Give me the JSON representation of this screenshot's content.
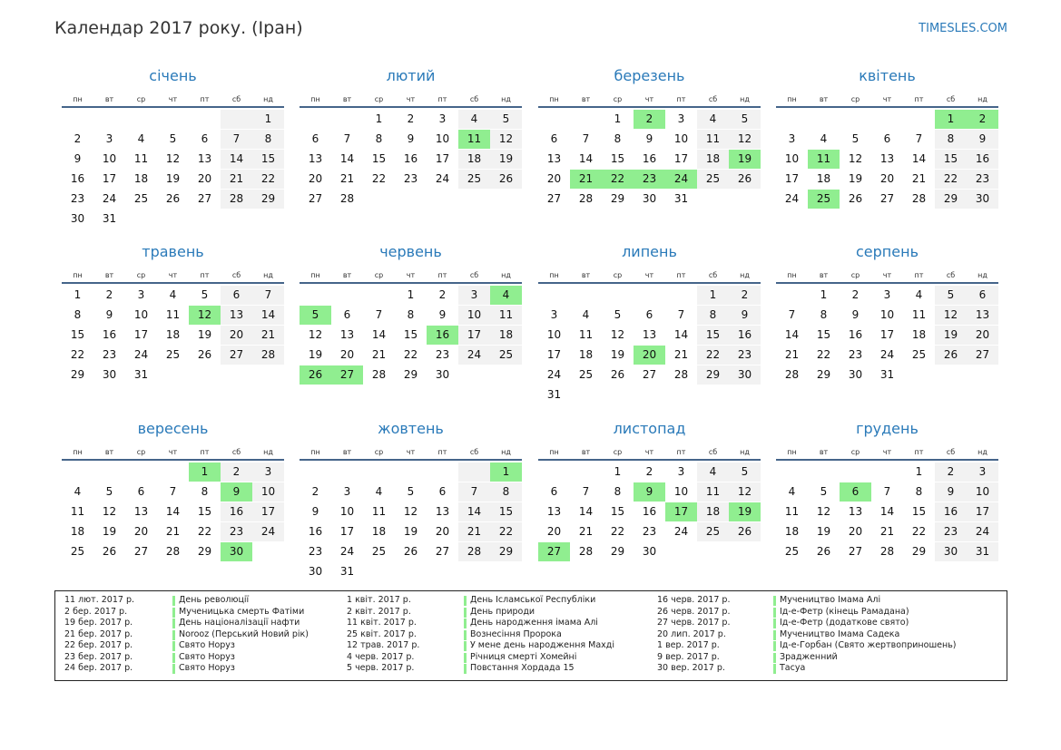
{
  "header": {
    "title": "Календар 2017 року. (Іран)",
    "site": "TIMESLES.COM"
  },
  "weekdays": [
    "пн",
    "вт",
    "ср",
    "чт",
    "пт",
    "сб",
    "нд"
  ],
  "months": [
    {
      "name": "січень",
      "holidays": [],
      "weeks": [
        [
          null,
          null,
          null,
          null,
          null,
          null,
          1
        ],
        [
          2,
          3,
          4,
          5,
          6,
          7,
          8
        ],
        [
          9,
          10,
          11,
          12,
          13,
          14,
          15
        ],
        [
          16,
          17,
          18,
          19,
          20,
          21,
          22
        ],
        [
          23,
          24,
          25,
          26,
          27,
          28,
          29
        ],
        [
          30,
          31
        ]
      ]
    },
    {
      "name": "лютий",
      "holidays": [
        11
      ],
      "weeks": [
        [
          null,
          null,
          1,
          2,
          3,
          4,
          5
        ],
        [
          6,
          7,
          8,
          9,
          10,
          11,
          12
        ],
        [
          13,
          14,
          15,
          16,
          17,
          18,
          19
        ],
        [
          20,
          21,
          22,
          23,
          24,
          25,
          26
        ],
        [
          27,
          28
        ]
      ]
    },
    {
      "name": "березень",
      "holidays": [
        2,
        19,
        21,
        22,
        23,
        24
      ],
      "weeks": [
        [
          null,
          null,
          1,
          2,
          3,
          4,
          5
        ],
        [
          6,
          7,
          8,
          9,
          10,
          11,
          12
        ],
        [
          13,
          14,
          15,
          16,
          17,
          18,
          19
        ],
        [
          20,
          21,
          22,
          23,
          24,
          25,
          26
        ],
        [
          27,
          28,
          29,
          30,
          31
        ]
      ]
    },
    {
      "name": "квітень",
      "holidays": [
        1,
        2,
        11,
        25
      ],
      "weeks": [
        [
          null,
          null,
          null,
          null,
          null,
          1,
          2
        ],
        [
          3,
          4,
          5,
          6,
          7,
          8,
          9
        ],
        [
          10,
          11,
          12,
          13,
          14,
          15,
          16
        ],
        [
          17,
          18,
          19,
          20,
          21,
          22,
          23
        ],
        [
          24,
          25,
          26,
          27,
          28,
          29,
          30
        ]
      ]
    },
    {
      "name": "травень",
      "holidays": [
        12
      ],
      "weeks": [
        [
          1,
          2,
          3,
          4,
          5,
          6,
          7
        ],
        [
          8,
          9,
          10,
          11,
          12,
          13,
          14
        ],
        [
          15,
          16,
          17,
          18,
          19,
          20,
          21
        ],
        [
          22,
          23,
          24,
          25,
          26,
          27,
          28
        ],
        [
          29,
          30,
          31
        ]
      ]
    },
    {
      "name": "червень",
      "holidays": [
        4,
        5,
        16,
        26,
        27
      ],
      "weeks": [
        [
          null,
          null,
          null,
          1,
          2,
          3,
          4
        ],
        [
          5,
          6,
          7,
          8,
          9,
          10,
          11
        ],
        [
          12,
          13,
          14,
          15,
          16,
          17,
          18
        ],
        [
          19,
          20,
          21,
          22,
          23,
          24,
          25
        ],
        [
          26,
          27,
          28,
          29,
          30
        ]
      ]
    },
    {
      "name": "липень",
      "holidays": [
        20
      ],
      "weeks": [
        [
          null,
          null,
          null,
          null,
          null,
          1,
          2
        ],
        [
          3,
          4,
          5,
          6,
          7,
          8,
          9
        ],
        [
          10,
          11,
          12,
          13,
          14,
          15,
          16
        ],
        [
          17,
          18,
          19,
          20,
          21,
          22,
          23
        ],
        [
          24,
          25,
          26,
          27,
          28,
          29,
          30
        ],
        [
          31
        ]
      ]
    },
    {
      "name": "серпень",
      "holidays": [],
      "weeks": [
        [
          null,
          1,
          2,
          3,
          4,
          5,
          6
        ],
        [
          7,
          8,
          9,
          10,
          11,
          12,
          13
        ],
        [
          14,
          15,
          16,
          17,
          18,
          19,
          20
        ],
        [
          21,
          22,
          23,
          24,
          25,
          26,
          27
        ],
        [
          28,
          29,
          30,
          31
        ]
      ]
    },
    {
      "name": "вересень",
      "holidays": [
        1,
        9,
        30
      ],
      "weeks": [
        [
          null,
          null,
          null,
          null,
          1,
          2,
          3
        ],
        [
          4,
          5,
          6,
          7,
          8,
          9,
          10
        ],
        [
          11,
          12,
          13,
          14,
          15,
          16,
          17
        ],
        [
          18,
          19,
          20,
          21,
          22,
          23,
          24
        ],
        [
          25,
          26,
          27,
          28,
          29,
          30
        ]
      ]
    },
    {
      "name": "жовтень",
      "holidays": [
        1
      ],
      "weeks": [
        [
          null,
          null,
          null,
          null,
          null,
          null,
          1
        ],
        [
          2,
          3,
          4,
          5,
          6,
          7,
          8
        ],
        [
          9,
          10,
          11,
          12,
          13,
          14,
          15
        ],
        [
          16,
          17,
          18,
          19,
          20,
          21,
          22
        ],
        [
          23,
          24,
          25,
          26,
          27,
          28,
          29
        ],
        [
          30,
          31
        ]
      ]
    },
    {
      "name": "листопад",
      "holidays": [
        9,
        17,
        19,
        27
      ],
      "weeks": [
        [
          null,
          null,
          1,
          2,
          3,
          4,
          5
        ],
        [
          6,
          7,
          8,
          9,
          10,
          11,
          12
        ],
        [
          13,
          14,
          15,
          16,
          17,
          18,
          19
        ],
        [
          20,
          21,
          22,
          23,
          24,
          25,
          26
        ],
        [
          27,
          28,
          29,
          30
        ]
      ]
    },
    {
      "name": "грудень",
      "holidays": [
        6
      ],
      "weeks": [
        [
          null,
          null,
          null,
          null,
          1,
          2,
          3
        ],
        [
          4,
          5,
          6,
          7,
          8,
          9,
          10
        ],
        [
          11,
          12,
          13,
          14,
          15,
          16,
          17
        ],
        [
          18,
          19,
          20,
          21,
          22,
          23,
          24
        ],
        [
          25,
          26,
          27,
          28,
          29,
          30,
          31
        ]
      ]
    }
  ],
  "holiday_list": [
    [
      [
        "11 лют. 2017 р.",
        "День революції"
      ],
      [
        "2 бер. 2017 р.",
        "Мученицька смерть Фатіми"
      ],
      [
        "19 бер. 2017 р.",
        "День націоналізації нафти"
      ],
      [
        "21 бер. 2017 р.",
        "Norooz (Перський Новий рік)"
      ],
      [
        "22 бер. 2017 р.",
        "Свято Норуз"
      ],
      [
        "23 бер. 2017 р.",
        "Свято Норуз"
      ],
      [
        "24 бер. 2017 р.",
        "Свято Норуз"
      ]
    ],
    [
      [
        "1 квіт. 2017 р.",
        "День Ісламської Республіки"
      ],
      [
        "2 квіт. 2017 р.",
        "День природи"
      ],
      [
        "11 квіт. 2017 р.",
        "День народження імама Алі"
      ],
      [
        "25 квіт. 2017 р.",
        "Вознесіння Пророка"
      ],
      [
        "12 трав. 2017 р.",
        "У мене день народження Махді"
      ],
      [
        "4 черв. 2017 р.",
        "Річниця смерті Хомейні"
      ],
      [
        "5 черв. 2017 р.",
        "Повстання Хордада 15"
      ]
    ],
    [
      [
        "16 черв. 2017 р.",
        "Мучеництво Імама Алі"
      ],
      [
        "26 черв. 2017 р.",
        "Ід-е-Фетр (кінець Рамадана)"
      ],
      [
        "27 черв. 2017 р.",
        "Ід-е-Фетр (додаткове свято)"
      ],
      [
        "20 лип. 2017 р.",
        "Мучеництво Імама Садека"
      ],
      [
        "1 вер. 2017 р.",
        "Ід-е-Горбан (Свято жертвоприношень)"
      ],
      [
        "9 вер. 2017 р.",
        "Зрадженний"
      ],
      [
        "30 вер. 2017 р.",
        "Тасуа"
      ]
    ]
  ]
}
